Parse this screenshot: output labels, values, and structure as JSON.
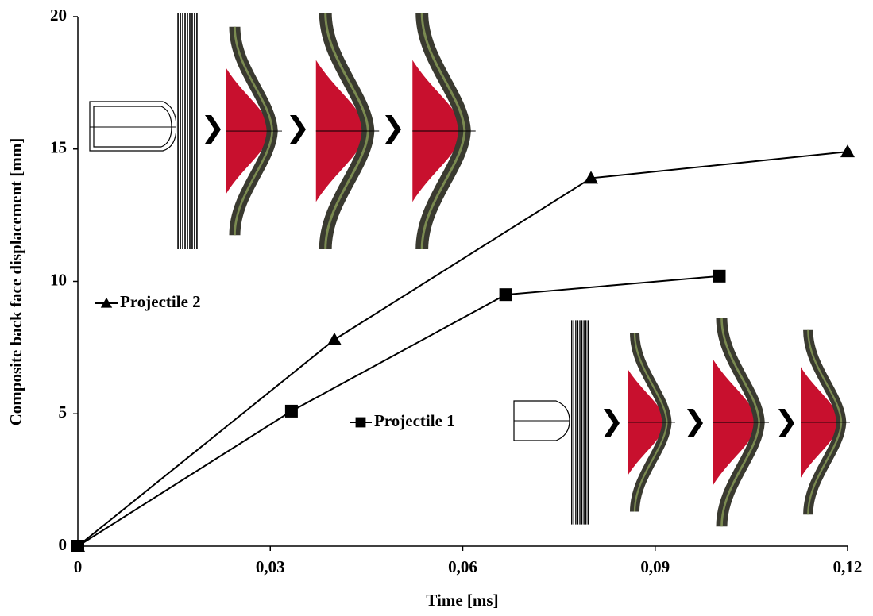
{
  "chart_data": {
    "type": "line",
    "xlabel": "Time [ms]",
    "ylabel": "Composite back face displacement [mm]",
    "xlim": [
      0,
      0.12
    ],
    "xticks": [
      0,
      {
        "value": 0.03,
        "label": "0,03"
      },
      {
        "value": 0.06,
        "label": "0,06"
      },
      {
        "value": 0.09,
        "label": "0,09"
      },
      {
        "value": 0.12,
        "label": "0,12"
      }
    ],
    "ylim": [
      0,
      20
    ],
    "yticks": [
      0,
      5,
      10,
      15,
      20
    ],
    "series": [
      {
        "name": "Projectile 2",
        "color": "#000000",
        "marker": "triangle",
        "x": [
          0,
          0.04,
          0.08,
          0.12
        ],
        "values": [
          0,
          7.8,
          13.9,
          14.9
        ]
      },
      {
        "name": "Projectile 1",
        "color": "#000000",
        "marker": "square",
        "x": [
          0,
          0.0333,
          0.0667,
          0.1
        ],
        "values": [
          0,
          5.1,
          9.5,
          10.2
        ]
      }
    ]
  }
}
